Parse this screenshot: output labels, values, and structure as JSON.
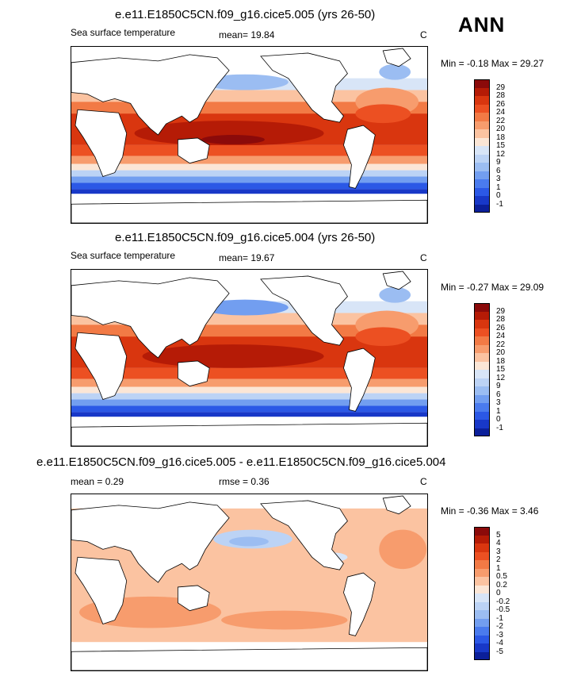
{
  "season": "ANN",
  "panels": [
    {
      "id": "panel1",
      "title": "e.e11.E1850C5CN.f09_g16.cice5.005 (yrs 26-50)",
      "left_label": "Sea surface temperature",
      "stat_label": "mean=  19.84",
      "units": "C",
      "minmax": "Min =  -0.18 Max =  29.27",
      "colorbar": {
        "labels": [
          "29",
          "28",
          "26",
          "24",
          "22",
          "20",
          "18",
          "15",
          "12",
          "9",
          "6",
          "3",
          "1",
          "0",
          "-1"
        ],
        "colors": [
          "#8b0a0a",
          "#b51b06",
          "#d9360f",
          "#ec5022",
          "#f27a45",
          "#f79c6d",
          "#fbc3a1",
          "#fbe6d6",
          "#d8e5f7",
          "#bcd3f5",
          "#9bbdf2",
          "#729ef0",
          "#4a7bee",
          "#2b58e6",
          "#1838c8",
          "#0b1f9a"
        ]
      }
    },
    {
      "id": "panel2",
      "title": "e.e11.E1850C5CN.f09_g16.cice5.004 (yrs 26-50)",
      "left_label": "Sea surface temperature",
      "stat_label": "mean=  19.67",
      "units": "C",
      "minmax": "Min =  -0.27 Max =  29.09",
      "colorbar": {
        "labels": [
          "29",
          "28",
          "26",
          "24",
          "22",
          "20",
          "18",
          "15",
          "12",
          "9",
          "6",
          "3",
          "1",
          "0",
          "-1"
        ],
        "colors": [
          "#8b0a0a",
          "#b51b06",
          "#d9360f",
          "#ec5022",
          "#f27a45",
          "#f79c6d",
          "#fbc3a1",
          "#fbe6d6",
          "#d8e5f7",
          "#bcd3f5",
          "#9bbdf2",
          "#729ef0",
          "#4a7bee",
          "#2b58e6",
          "#1838c8",
          "#0b1f9a"
        ]
      }
    },
    {
      "id": "panel3",
      "title": "e.e11.E1850C5CN.f09_g16.cice5.005 - e.e11.E1850C5CN.f09_g16.cice5.004",
      "left_label": "mean =   0.29",
      "stat_label": "rmse =   0.36",
      "units": "C",
      "minmax": "Min =  -0.36 Max =   3.46",
      "colorbar": {
        "labels": [
          "5",
          "4",
          "3",
          "2",
          "1",
          "0.5",
          "0.2",
          "0",
          "-0.2",
          "-0.5",
          "-1",
          "-2",
          "-3",
          "-4",
          "-5"
        ],
        "colors": [
          "#8b0a0a",
          "#b51b06",
          "#d9360f",
          "#ec5022",
          "#f27a45",
          "#f79c6d",
          "#fbc3a1",
          "#fbe6d6",
          "#d8e5f7",
          "#bcd3f5",
          "#9bbdf2",
          "#729ef0",
          "#4a7bee",
          "#2b58e6",
          "#1838c8",
          "#0b1f9a"
        ]
      }
    }
  ],
  "chart_data": [
    {
      "type": "heatmap",
      "title": "e.e11.E1850C5CN.f09_g16.cice5.005 (yrs 26-50)",
      "variable": "Sea surface temperature",
      "units": "C",
      "mean": 19.84,
      "min": -0.18,
      "max": 29.27,
      "levels": [
        -1,
        0,
        1,
        3,
        6,
        9,
        12,
        15,
        18,
        20,
        22,
        24,
        26,
        28,
        29
      ]
    },
    {
      "type": "heatmap",
      "title": "e.e11.E1850C5CN.f09_g16.cice5.004 (yrs 26-50)",
      "variable": "Sea surface temperature",
      "units": "C",
      "mean": 19.67,
      "min": -0.27,
      "max": 29.09,
      "levels": [
        -1,
        0,
        1,
        3,
        6,
        9,
        12,
        15,
        18,
        20,
        22,
        24,
        26,
        28,
        29
      ]
    },
    {
      "type": "heatmap",
      "title": "e.e11.E1850C5CN.f09_g16.cice5.005 - e.e11.E1850C5CN.f09_g16.cice5.004",
      "units": "C",
      "mean": 0.29,
      "rmse": 0.36,
      "min": -0.36,
      "max": 3.46,
      "levels": [
        -5,
        -4,
        -3,
        -2,
        -1,
        -0.5,
        -0.2,
        0,
        0.2,
        0.5,
        1,
        2,
        3,
        4,
        5
      ]
    }
  ]
}
